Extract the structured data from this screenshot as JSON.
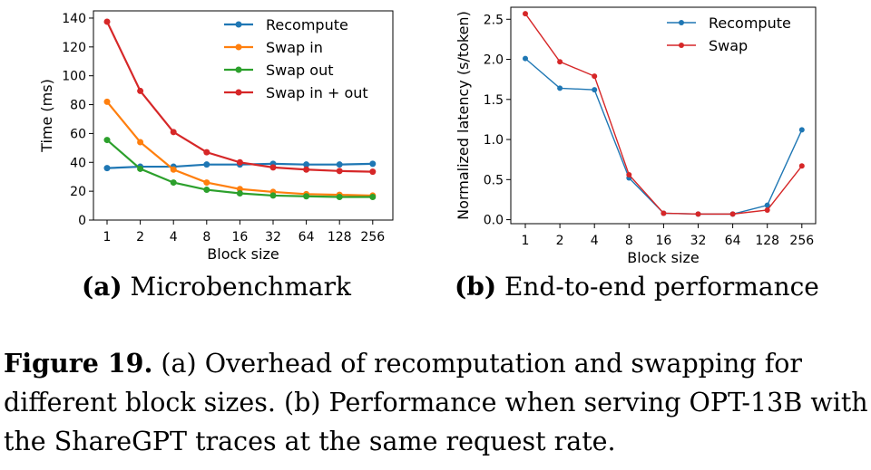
{
  "chart_data": [
    {
      "type": "line",
      "x": [
        "1",
        "2",
        "4",
        "8",
        "16",
        "32",
        "64",
        "128",
        "256"
      ],
      "xlabel": "Block size",
      "ylabel": "Time (ms)",
      "ylim": [
        0,
        145
      ],
      "yticks": [
        0,
        20,
        40,
        60,
        80,
        100,
        120,
        140
      ],
      "legend_position": "top-right",
      "series": [
        {
          "name": "Recompute",
          "color": "#1f77b4",
          "values": [
            36,
            37,
            37,
            38.5,
            38.5,
            39,
            38.5,
            38.5,
            39
          ]
        },
        {
          "name": "Swap in",
          "color": "#ff7f0e",
          "values": [
            82,
            54,
            35,
            26,
            21.5,
            19.5,
            18,
            17.5,
            17
          ]
        },
        {
          "name": "Swap out",
          "color": "#2ca02c",
          "values": [
            55.5,
            35.5,
            26,
            21,
            18.5,
            17,
            16.5,
            16,
            16
          ]
        },
        {
          "name": "Swap in + out",
          "color": "#d62728",
          "values": [
            137.5,
            89.5,
            61,
            47,
            40,
            36.5,
            35,
            34,
            33.5
          ]
        }
      ]
    },
    {
      "type": "line",
      "x": [
        "1",
        "2",
        "4",
        "8",
        "16",
        "32",
        "64",
        "128",
        "256"
      ],
      "xlabel": "Block size",
      "ylabel": "Normalized latency (s/token)",
      "ylim": [
        -0.05,
        2.65
      ],
      "yticks": [
        "0.0",
        "0.5",
        "1.0",
        "1.5",
        "2.0",
        "2.5"
      ],
      "legend_position": "top-right",
      "series": [
        {
          "name": "Recompute",
          "color": "#1f77b4",
          "values": [
            2.01,
            1.64,
            1.62,
            0.52,
            0.08,
            0.07,
            0.07,
            0.18,
            1.12
          ]
        },
        {
          "name": "Swap",
          "color": "#d62728",
          "values": [
            2.57,
            1.97,
            1.79,
            0.56,
            0.08,
            0.07,
            0.07,
            0.12,
            0.67
          ]
        }
      ]
    }
  ],
  "subcaptions": {
    "a_tag": "(a)",
    "a_text": " Microbenchmark",
    "b_tag": "(b)",
    "b_text": " End-to-end performance"
  },
  "caption": {
    "label": "Figure 19.",
    "text": " (a) Overhead of recomputation and swapping for different block sizes. (b) Performance when serving OPT-13B with the ShareGPT traces at the same request rate."
  }
}
